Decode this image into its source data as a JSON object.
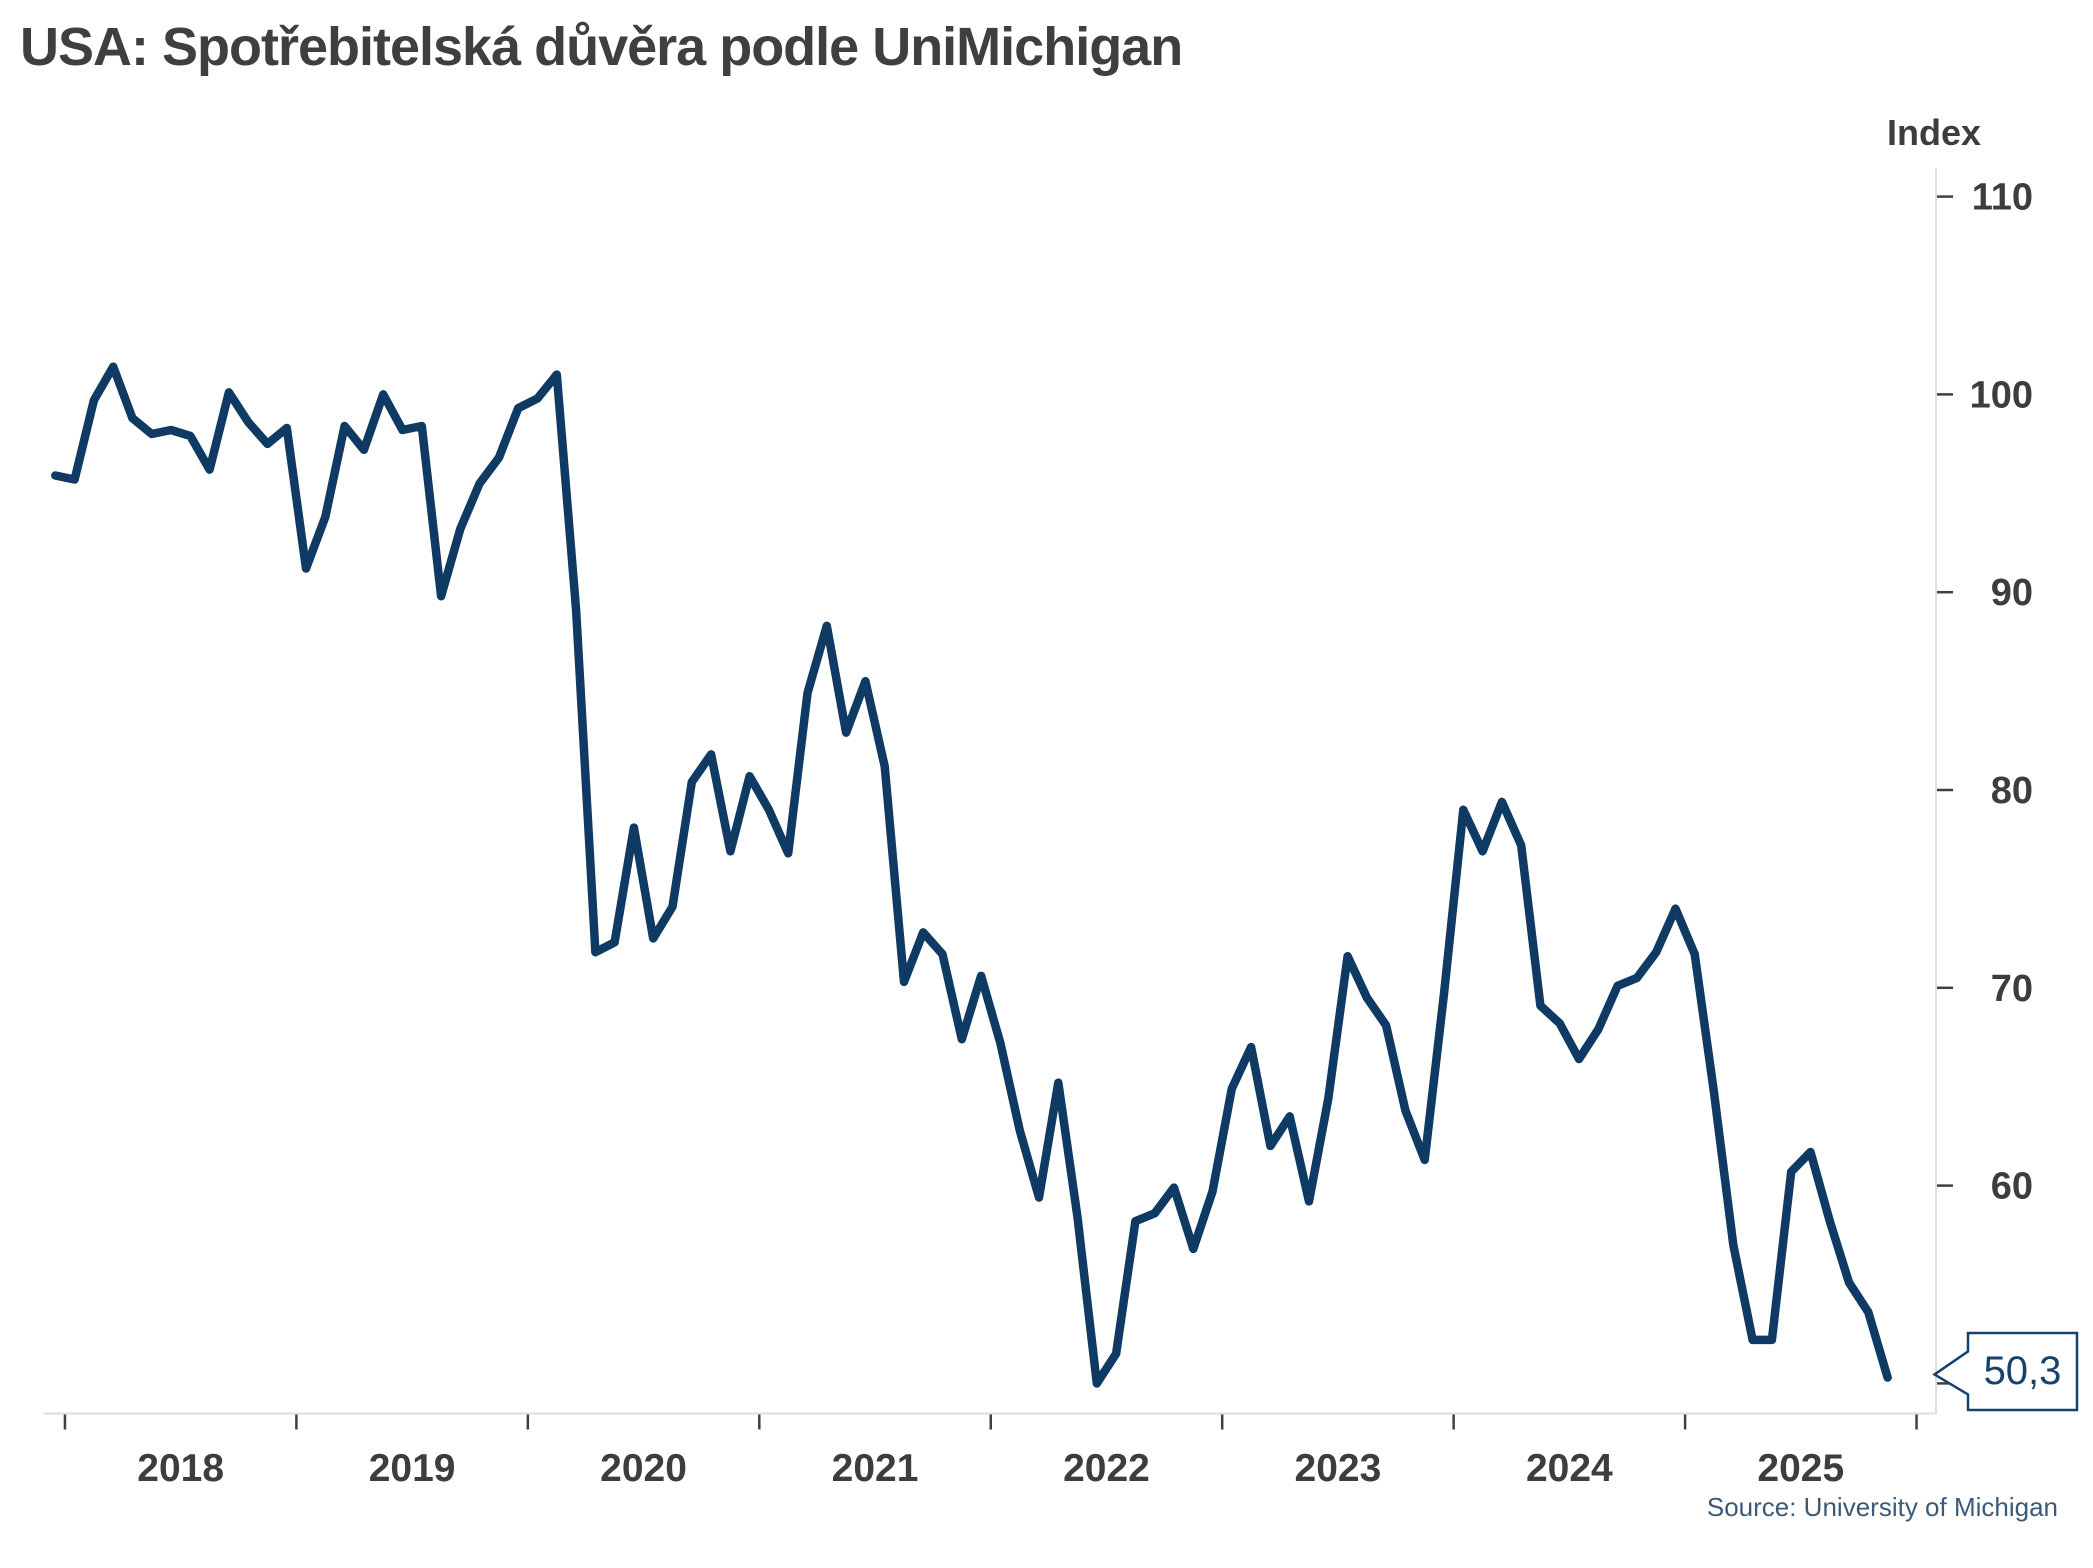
{
  "page": {
    "title": "USA: Spotřebitelská důvěra podle UniMichigan",
    "y_axis_title": "Index",
    "source": "Source: University of Michigan"
  },
  "callout": {
    "label": "50,3"
  },
  "x_axis": {
    "labels": [
      "2018",
      "2019",
      "2020",
      "2021",
      "2022",
      "2023",
      "2024",
      "2025"
    ],
    "tick_years": [
      2018,
      2019,
      2020,
      2021,
      2022,
      2023,
      2024,
      2025,
      2026
    ]
  },
  "y_axis": {
    "labels": [
      "110",
      "100",
      "90",
      "80",
      "70",
      "60"
    ],
    "label_values": [
      110,
      100,
      90,
      80,
      70,
      60
    ],
    "dash_values": [
      110,
      100,
      90,
      80,
      70,
      60,
      50
    ]
  },
  "colors": {
    "line": "#0e3a63",
    "callout": "#17426e",
    "axis_text": "#3d3d3d",
    "title_text": "#3f3f3f",
    "source_text": "#3c5a78",
    "axis_line": "#dedede",
    "tick": "#404040"
  },
  "chart_data": {
    "type": "line",
    "title": "USA: Spotřebitelská důvěra podle UniMichigan",
    "xlabel": "",
    "ylabel": "Index",
    "x_start": "2017-12",
    "frequency": "monthly",
    "x_tick_labels": [
      "2018",
      "2019",
      "2020",
      "2021",
      "2022",
      "2023",
      "2024",
      "2025"
    ],
    "y_ticks": [
      110,
      100,
      90,
      80,
      70,
      60
    ],
    "ylim": [
      48,
      112
    ],
    "grid": false,
    "legend": "none",
    "last_point": {
      "date": "2025-11",
      "value": 50.3,
      "label": "50,3"
    },
    "series": [
      {
        "name": "University of Michigan Consumer Sentiment Index",
        "color": "#0e3a63",
        "values": [
          95.9,
          95.7,
          99.7,
          101.4,
          98.8,
          98.0,
          98.2,
          97.9,
          96.2,
          100.1,
          98.6,
          97.5,
          98.3,
          91.2,
          93.8,
          98.4,
          97.2,
          100.0,
          98.2,
          98.4,
          89.8,
          93.2,
          95.5,
          96.8,
          99.3,
          99.8,
          101.0,
          89.1,
          71.8,
          72.3,
          78.1,
          72.5,
          74.1,
          80.4,
          81.8,
          76.9,
          80.7,
          79.0,
          76.8,
          84.9,
          88.3,
          82.9,
          85.5,
          81.2,
          70.3,
          72.8,
          71.7,
          67.4,
          70.6,
          67.2,
          62.8,
          59.4,
          65.2,
          58.4,
          50.0,
          51.5,
          58.2,
          58.6,
          59.9,
          56.8,
          59.7,
          64.9,
          67.0,
          62.0,
          63.5,
          59.2,
          64.4,
          71.6,
          69.5,
          68.1,
          63.8,
          61.3,
          69.7,
          79.0,
          76.9,
          79.4,
          77.2,
          69.1,
          68.2,
          66.4,
          67.9,
          70.1,
          70.5,
          71.8,
          74.0,
          71.7,
          64.7,
          57.0,
          52.2,
          52.2,
          60.7,
          61.7,
          58.2,
          55.1,
          53.6,
          50.3
        ]
      }
    ]
  }
}
